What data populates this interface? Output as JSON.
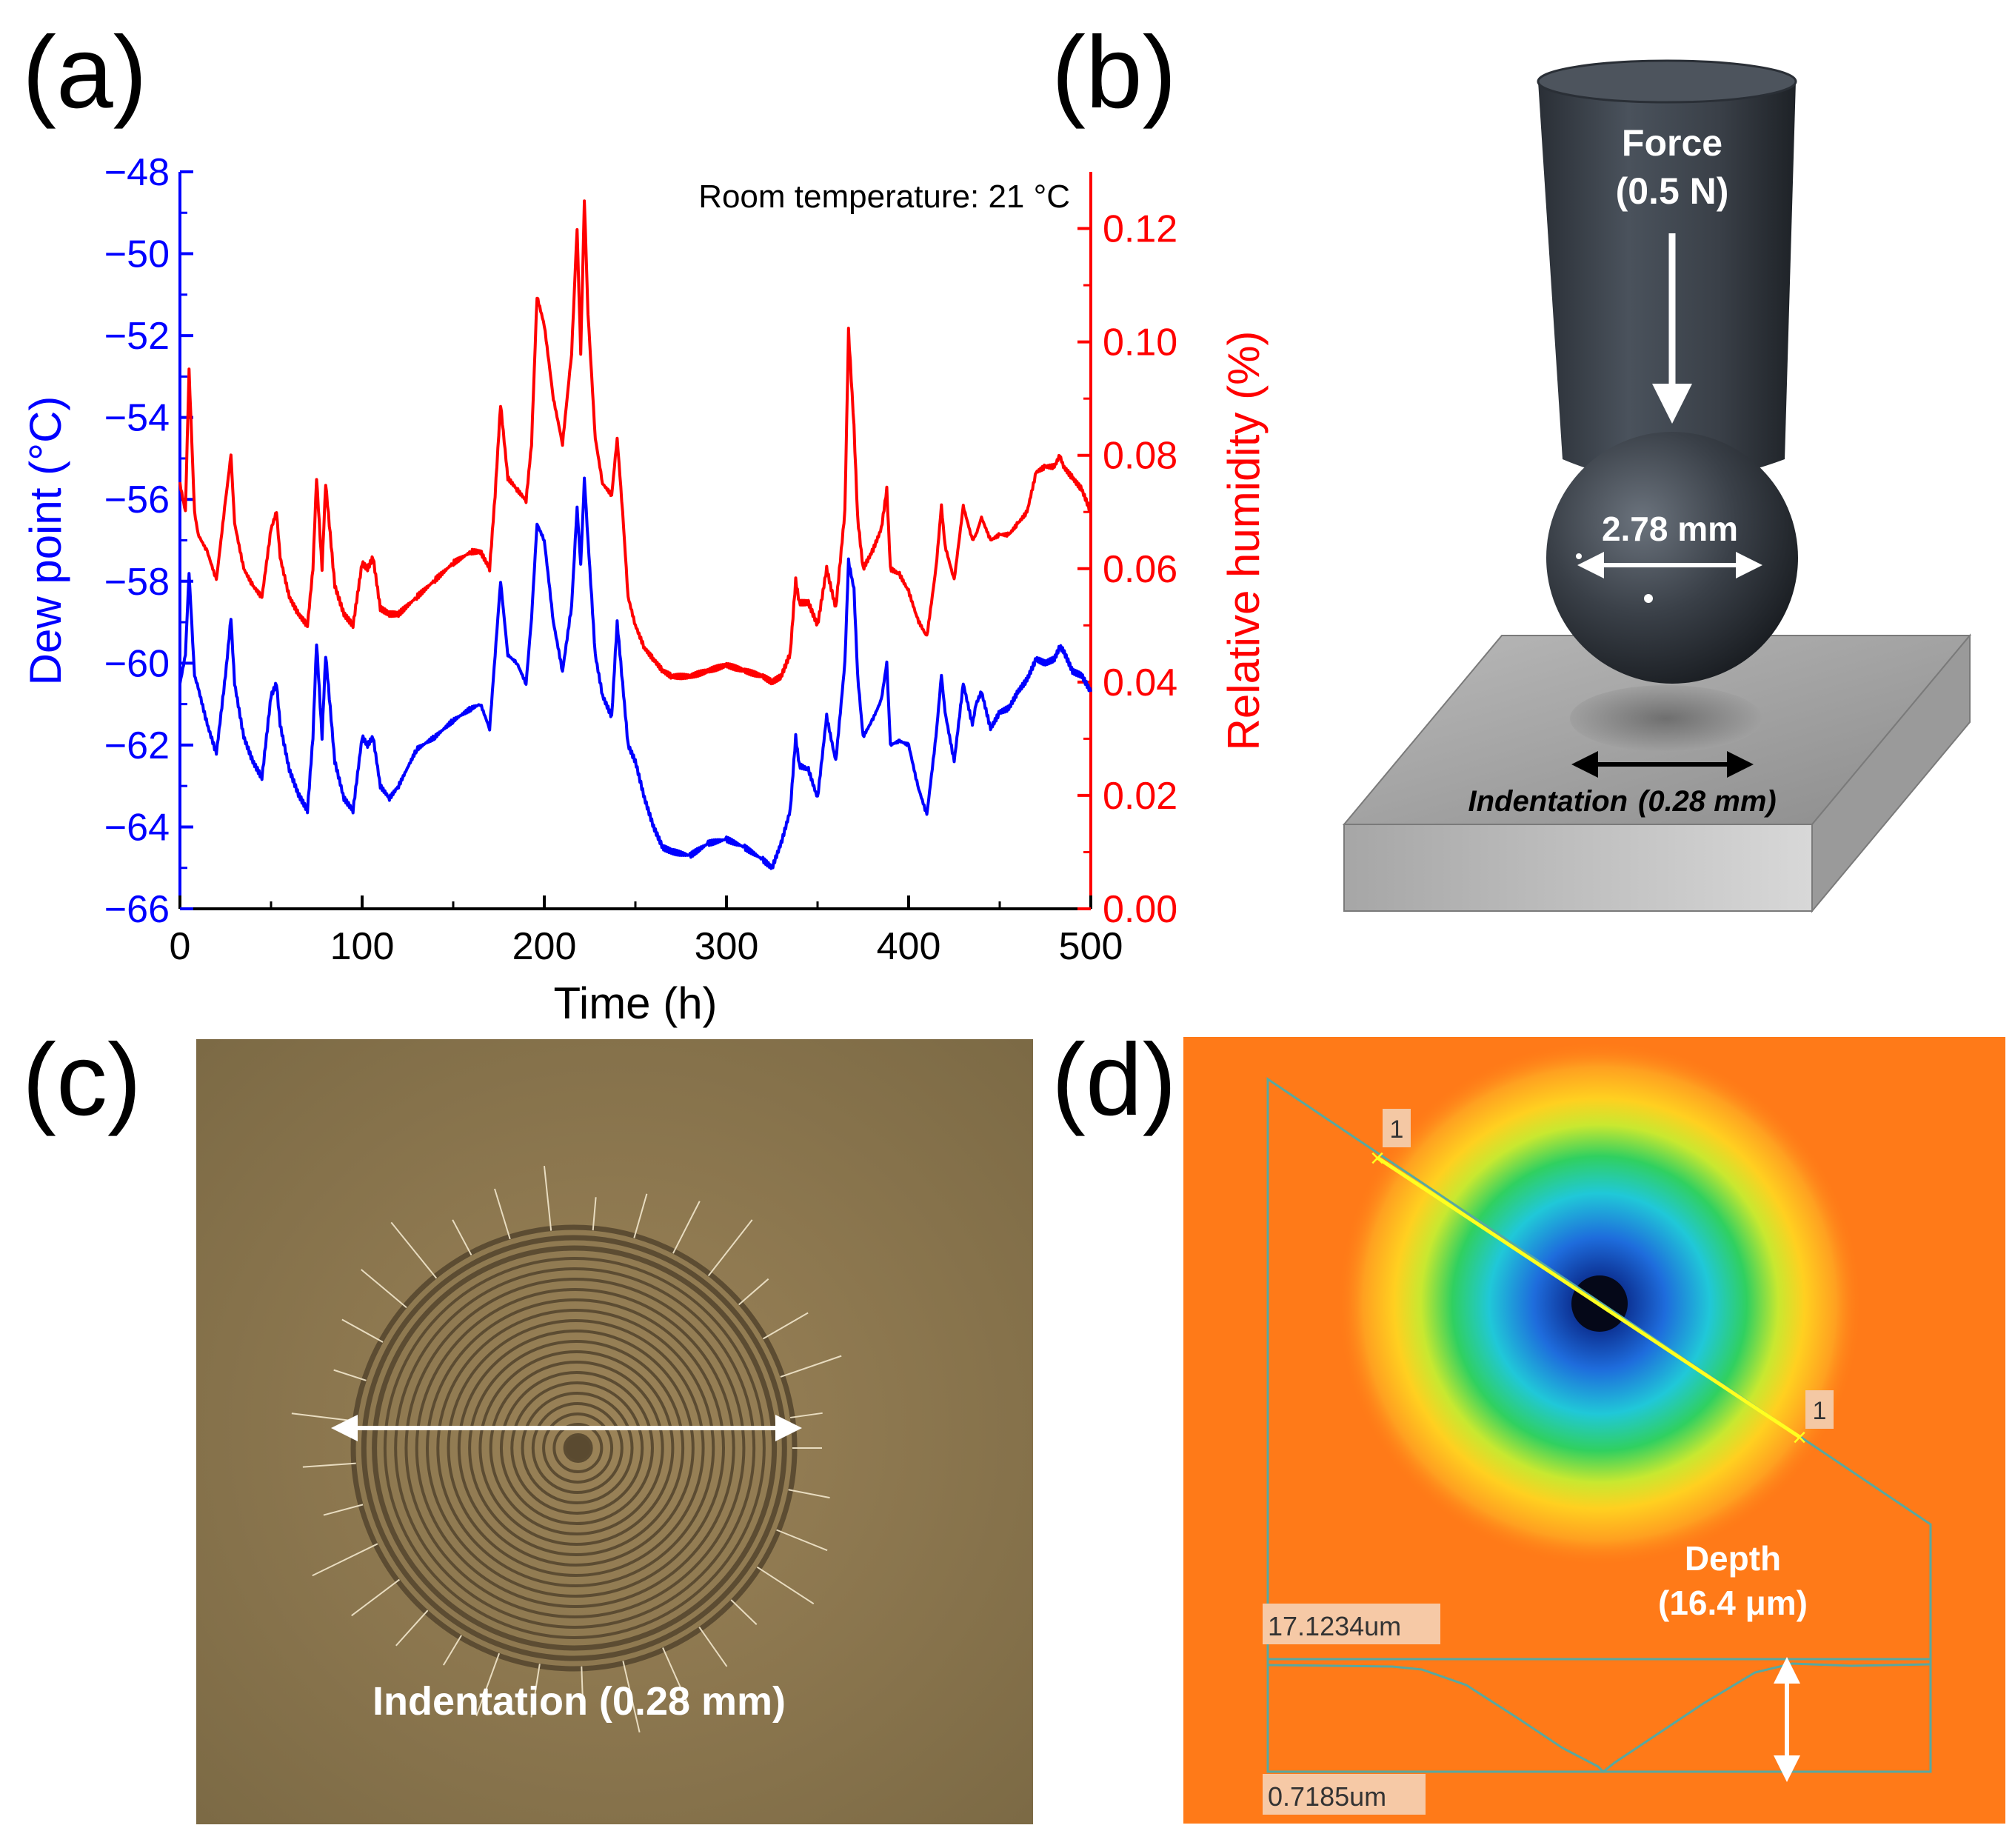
{
  "panels": {
    "a": {
      "label": "(a)"
    },
    "b": {
      "label": "(b)"
    },
    "c": {
      "label": "(c)"
    },
    "d": {
      "label": "(d)"
    }
  },
  "chart_data": {
    "type": "line",
    "annotation": "Room temperature: 21 °C",
    "xlabel": "Time (h)",
    "ylabel": "Dew point (°C)",
    "y2label": "Relative humidity (%)",
    "xlim": [
      0,
      500
    ],
    "ylim": [
      -66,
      -48
    ],
    "y2lim": [
      0.0,
      0.13
    ],
    "xticks": [
      "0",
      "100",
      "200",
      "300",
      "400",
      "500"
    ],
    "yticks": [
      "-48",
      "-50",
      "-52",
      "-54",
      "-56",
      "-58",
      "-60",
      "-62",
      "-64",
      "-66"
    ],
    "y2ticks": [
      "0.12",
      "0.10",
      "0.08",
      "0.06",
      "0.04",
      "0.02",
      "0.00"
    ],
    "colors": {
      "dew": "#0000ff",
      "rh": "#ff0000",
      "axis": "#000000"
    },
    "series": [
      {
        "name": "Dew point",
        "axis": "left",
        "color": "#0000ff",
        "x": [
          0,
          3,
          5,
          8,
          10,
          15,
          20,
          25,
          28,
          30,
          35,
          40,
          45,
          50,
          53,
          55,
          60,
          65,
          70,
          73,
          75,
          78,
          80,
          85,
          90,
          95,
          100,
          103,
          106,
          110,
          115,
          120,
          130,
          140,
          150,
          160,
          165,
          170,
          173,
          176,
          180,
          185,
          190,
          193,
          196,
          200,
          205,
          210,
          215,
          218,
          220,
          222,
          224,
          228,
          232,
          237,
          240,
          243,
          246,
          250,
          255,
          260,
          265,
          270,
          280,
          290,
          300,
          310,
          320,
          325,
          330,
          335,
          338,
          340,
          345,
          350,
          355,
          360,
          365,
          367,
          370,
          372,
          375,
          380,
          385,
          388,
          390,
          395,
          400,
          405,
          410,
          415,
          418,
          420,
          425,
          430,
          435,
          437,
          440,
          445,
          450,
          455,
          460,
          465,
          470,
          475,
          480,
          483,
          485,
          490,
          495,
          500
        ],
        "y": [
          -60.5,
          -59.8,
          -57.8,
          -60.3,
          -60.6,
          -61.5,
          -62.2,
          -60.3,
          -58.9,
          -60.5,
          -61.8,
          -62.4,
          -62.8,
          -60.8,
          -60.5,
          -61.5,
          -62.6,
          -63.2,
          -63.6,
          -61.8,
          -59.5,
          -61.8,
          -59.8,
          -62.4,
          -63.3,
          -63.6,
          -61.8,
          -62.0,
          -61.8,
          -63.0,
          -63.3,
          -63.0,
          -62.1,
          -61.8,
          -61.4,
          -61.1,
          -61.0,
          -61.6,
          -59.8,
          -58.0,
          -59.8,
          -60.0,
          -60.5,
          -58.9,
          -56.6,
          -57.0,
          -59.0,
          -60.2,
          -58.6,
          -56.2,
          -57.6,
          -55.5,
          -57.0,
          -59.8,
          -60.8,
          -61.3,
          -59.0,
          -60.5,
          -62.0,
          -62.4,
          -63.3,
          -64.0,
          -64.5,
          -64.6,
          -64.7,
          -64.4,
          -64.3,
          -64.5,
          -64.8,
          -65.0,
          -64.4,
          -63.6,
          -61.8,
          -62.5,
          -62.6,
          -63.3,
          -61.3,
          -62.4,
          -60.0,
          -57.5,
          -58.2,
          -60.3,
          -61.8,
          -61.4,
          -60.9,
          -60.0,
          -62.0,
          -61.9,
          -62.0,
          -63.0,
          -63.7,
          -61.8,
          -60.3,
          -61.2,
          -62.4,
          -60.5,
          -61.5,
          -61.0,
          -60.7,
          -61.6,
          -61.2,
          -61.1,
          -60.7,
          -60.4,
          -59.9,
          -60.0,
          -59.9,
          -59.6,
          -59.7,
          -60.2,
          -60.3,
          -60.7
        ]
      },
      {
        "name": "Relative humidity",
        "axis": "right",
        "color": "#ff0000",
        "x": [
          0,
          3,
          5,
          8,
          10,
          15,
          20,
          25,
          28,
          30,
          35,
          40,
          45,
          50,
          53,
          55,
          60,
          65,
          70,
          73,
          75,
          78,
          80,
          85,
          90,
          95,
          100,
          103,
          106,
          110,
          115,
          120,
          130,
          140,
          150,
          160,
          165,
          170,
          173,
          176,
          180,
          185,
          190,
          193,
          196,
          200,
          205,
          210,
          215,
          218,
          220,
          222,
          224,
          228,
          232,
          237,
          240,
          243,
          246,
          250,
          255,
          260,
          265,
          270,
          280,
          290,
          300,
          310,
          320,
          325,
          330,
          335,
          338,
          340,
          345,
          350,
          355,
          360,
          365,
          367,
          370,
          372,
          375,
          380,
          385,
          388,
          390,
          395,
          400,
          405,
          410,
          415,
          418,
          420,
          425,
          430,
          435,
          437,
          440,
          445,
          450,
          455,
          460,
          465,
          470,
          475,
          480,
          483,
          485,
          490,
          495,
          500
        ],
        "y": [
          0.075,
          0.07,
          0.095,
          0.07,
          0.066,
          0.063,
          0.058,
          0.072,
          0.08,
          0.068,
          0.06,
          0.057,
          0.055,
          0.067,
          0.07,
          0.062,
          0.055,
          0.052,
          0.05,
          0.06,
          0.076,
          0.06,
          0.075,
          0.057,
          0.052,
          0.05,
          0.061,
          0.06,
          0.062,
          0.053,
          0.052,
          0.052,
          0.055,
          0.058,
          0.061,
          0.063,
          0.063,
          0.06,
          0.073,
          0.089,
          0.076,
          0.074,
          0.072,
          0.082,
          0.108,
          0.103,
          0.09,
          0.082,
          0.098,
          0.12,
          0.098,
          0.125,
          0.105,
          0.083,
          0.075,
          0.073,
          0.083,
          0.07,
          0.055,
          0.05,
          0.046,
          0.044,
          0.042,
          0.041,
          0.041,
          0.042,
          0.043,
          0.042,
          0.041,
          0.04,
          0.041,
          0.045,
          0.058,
          0.054,
          0.054,
          0.05,
          0.06,
          0.053,
          0.07,
          0.102,
          0.085,
          0.069,
          0.06,
          0.063,
          0.067,
          0.074,
          0.06,
          0.059,
          0.056,
          0.051,
          0.048,
          0.06,
          0.071,
          0.064,
          0.058,
          0.071,
          0.065,
          0.066,
          0.069,
          0.065,
          0.066,
          0.066,
          0.068,
          0.07,
          0.077,
          0.078,
          0.078,
          0.08,
          0.078,
          0.076,
          0.074,
          0.07
        ]
      }
    ]
  },
  "schematic_b": {
    "force_label": "Force",
    "force_value": "(0.5 N)",
    "ball_diameter": "2.78 mm",
    "indentation_label": "Indentation",
    "indentation_value": "(0.28 mm)"
  },
  "micrograph_c": {
    "caption": "Indentation (0.28 mm)"
  },
  "profile_d": {
    "marker_start": "1",
    "marker_end": "1",
    "depth_label": "Depth",
    "depth_value": "(16.4 μm)",
    "max_height": "17.1234um",
    "min_height": "0.7185um"
  }
}
